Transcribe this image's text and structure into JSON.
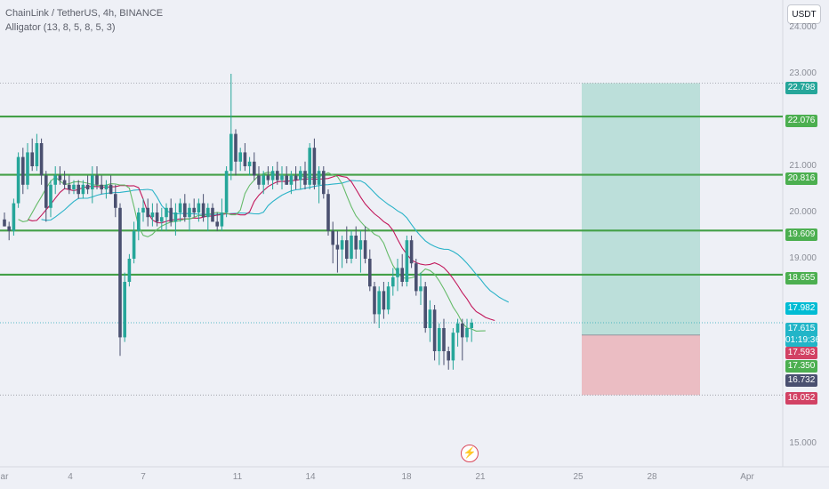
{
  "header": {
    "symbol_line": "ChainLink / TetherUS, 4h, BINANCE",
    "indicator_line": "Alligator (13, 8, 5, 8, 5, 3)"
  },
  "currency_button": "USDT",
  "alert_icon": "lightning-icon",
  "price_axis": {
    "ticks": [
      "24.000",
      "23.000",
      "21.000",
      "20.000",
      "19.000",
      "15.000"
    ]
  },
  "time_axis": {
    "labels": [
      "ar",
      "4",
      "7",
      "11",
      "14",
      "18",
      "21",
      "25",
      "28",
      "Apr"
    ]
  },
  "price_tags": [
    {
      "label": "22.798",
      "color": "#26a69a"
    },
    {
      "label": "22.076",
      "color": "#4caf50"
    },
    {
      "label": "20.816",
      "color": "#4caf50"
    },
    {
      "label": "19.609",
      "color": "#4caf50"
    },
    {
      "label": "18.655",
      "color": "#4caf50"
    },
    {
      "label": "17.982",
      "color": "#00bcd4"
    },
    {
      "label": "17.615",
      "sub": "01:19:36",
      "color": "#22b5c8"
    },
    {
      "label": "17.593",
      "color": "#d24264"
    },
    {
      "label": "17.350",
      "color": "#4caf50"
    },
    {
      "label": "16.732",
      "color": "#4a5070"
    },
    {
      "label": "16.052",
      "color": "#d24264"
    }
  ],
  "chart_data": {
    "type": "candlestick",
    "symbol": "ChainLink / TetherUS",
    "timeframe": "4h",
    "exchange": "BINANCE",
    "y_axis_range": [
      14.8,
      24.2
    ],
    "horizontal_levels": [
      22.076,
      20.816,
      19.609,
      18.655
    ],
    "dotted_levels": [
      22.798,
      17.615,
      16.052
    ],
    "position": {
      "entry": 17.35,
      "target": 22.798,
      "stop": 16.052
    },
    "indicators": {
      "alligator_params": "13, 8, 5, 8, 5, 3",
      "jaw_last": 17.982,
      "teeth_last": 17.593,
      "lips_last": 17.35
    },
    "last_price": 17.615,
    "countdown": "01:19:36",
    "candles": [
      [
        19.85,
        20.0,
        19.7,
        19.7
      ],
      [
        19.7,
        19.8,
        19.4,
        19.6
      ],
      [
        19.6,
        20.3,
        19.5,
        20.2
      ],
      [
        20.2,
        21.3,
        20.1,
        21.2
      ],
      [
        21.2,
        21.4,
        20.4,
        20.6
      ],
      [
        20.6,
        21.5,
        20.5,
        21.3
      ],
      [
        21.3,
        21.6,
        20.9,
        21.0
      ],
      [
        21.0,
        21.7,
        20.9,
        21.5
      ],
      [
        21.5,
        21.6,
        20.6,
        20.8
      ],
      [
        20.8,
        20.9,
        19.8,
        20.1
      ],
      [
        20.1,
        20.7,
        19.9,
        20.6
      ],
      [
        20.6,
        21.0,
        20.4,
        20.8
      ],
      [
        20.8,
        21.0,
        20.6,
        20.7
      ],
      [
        20.7,
        20.9,
        20.5,
        20.6
      ],
      [
        20.6,
        20.8,
        20.4,
        20.5
      ],
      [
        20.5,
        20.7,
        20.4,
        20.6
      ],
      [
        20.6,
        20.7,
        20.3,
        20.4
      ],
      [
        20.4,
        20.7,
        20.3,
        20.6
      ],
      [
        20.6,
        20.8,
        20.4,
        20.5
      ],
      [
        20.5,
        21.0,
        20.2,
        20.8
      ],
      [
        20.8,
        21.0,
        20.5,
        20.6
      ],
      [
        20.6,
        20.8,
        20.4,
        20.5
      ],
      [
        20.5,
        20.7,
        20.3,
        20.6
      ],
      [
        20.6,
        20.8,
        20.4,
        20.4
      ],
      [
        20.4,
        20.6,
        19.9,
        20.1
      ],
      [
        20.1,
        20.2,
        16.9,
        17.3
      ],
      [
        17.3,
        18.7,
        17.2,
        18.5
      ],
      [
        18.5,
        19.1,
        18.4,
        19.0
      ],
      [
        19.0,
        19.8,
        18.9,
        19.6
      ],
      [
        19.6,
        20.1,
        19.4,
        20.0
      ],
      [
        20.0,
        20.3,
        19.8,
        20.1
      ],
      [
        20.1,
        20.3,
        19.7,
        19.9
      ],
      [
        19.9,
        20.2,
        19.7,
        20.0
      ],
      [
        20.0,
        20.2,
        19.7,
        19.8
      ],
      [
        19.8,
        20.1,
        19.6,
        19.9
      ],
      [
        19.9,
        20.2,
        19.6,
        20.1
      ],
      [
        20.1,
        20.3,
        19.7,
        19.8
      ],
      [
        19.8,
        20.2,
        19.5,
        20.0
      ],
      [
        20.0,
        20.3,
        19.8,
        20.2
      ],
      [
        20.2,
        20.4,
        19.8,
        19.9
      ],
      [
        19.9,
        20.2,
        19.6,
        20.1
      ],
      [
        20.1,
        20.3,
        19.9,
        20.0
      ],
      [
        20.0,
        20.3,
        19.8,
        20.2
      ],
      [
        20.2,
        20.4,
        19.8,
        19.9
      ],
      [
        19.9,
        20.2,
        19.6,
        20.1
      ],
      [
        20.1,
        20.2,
        19.8,
        19.8
      ],
      [
        19.8,
        20.0,
        19.6,
        19.7
      ],
      [
        19.7,
        20.3,
        19.6,
        20.0
      ],
      [
        20.0,
        21.0,
        19.9,
        20.9
      ],
      [
        20.9,
        23.0,
        20.7,
        21.7
      ],
      [
        21.7,
        21.8,
        20.8,
        21.1
      ],
      [
        21.1,
        21.4,
        20.9,
        21.3
      ],
      [
        21.3,
        21.5,
        20.9,
        21.0
      ],
      [
        21.0,
        21.2,
        20.8,
        21.1
      ],
      [
        21.1,
        21.3,
        20.7,
        20.8
      ],
      [
        20.8,
        21.0,
        20.5,
        20.6
      ],
      [
        20.6,
        20.9,
        20.4,
        20.8
      ],
      [
        20.8,
        21.0,
        20.6,
        20.7
      ],
      [
        20.7,
        21.0,
        20.5,
        20.9
      ],
      [
        20.9,
        21.1,
        20.6,
        20.7
      ],
      [
        20.7,
        21.0,
        20.5,
        20.8
      ],
      [
        20.8,
        21.0,
        20.6,
        20.6
      ],
      [
        20.6,
        20.9,
        20.4,
        20.8
      ],
      [
        20.8,
        21.0,
        20.5,
        20.7
      ],
      [
        20.7,
        21.0,
        20.5,
        20.9
      ],
      [
        20.9,
        21.1,
        20.5,
        20.6
      ],
      [
        20.6,
        21.5,
        20.5,
        21.4
      ],
      [
        21.4,
        21.6,
        20.5,
        20.6
      ],
      [
        20.6,
        21.0,
        20.2,
        20.9
      ],
      [
        20.9,
        21.0,
        20.3,
        20.4
      ],
      [
        20.4,
        20.5,
        19.5,
        19.6
      ],
      [
        19.6,
        19.8,
        18.9,
        19.3
      ],
      [
        19.3,
        19.6,
        18.7,
        19.2
      ],
      [
        19.2,
        19.5,
        18.8,
        19.4
      ],
      [
        19.4,
        19.7,
        18.9,
        19.0
      ],
      [
        19.0,
        19.6,
        18.9,
        19.5
      ],
      [
        19.5,
        19.7,
        19.0,
        19.2
      ],
      [
        19.2,
        19.6,
        18.7,
        19.4
      ],
      [
        19.4,
        19.7,
        18.9,
        19.0
      ],
      [
        19.0,
        19.2,
        18.3,
        18.4
      ],
      [
        18.4,
        18.5,
        17.6,
        17.8
      ],
      [
        17.8,
        18.4,
        17.5,
        18.3
      ],
      [
        18.3,
        18.5,
        17.7,
        17.9
      ],
      [
        17.9,
        18.5,
        17.8,
        18.4
      ],
      [
        18.4,
        18.8,
        18.2,
        18.6
      ],
      [
        18.6,
        19.0,
        18.3,
        18.8
      ],
      [
        18.8,
        19.1,
        18.4,
        18.5
      ],
      [
        18.5,
        19.5,
        18.4,
        19.4
      ],
      [
        19.4,
        19.5,
        18.8,
        18.9
      ],
      [
        18.9,
        19.0,
        18.2,
        18.3
      ],
      [
        18.3,
        18.7,
        18.0,
        18.4
      ],
      [
        18.4,
        18.5,
        17.4,
        17.5
      ],
      [
        17.5,
        18.1,
        17.2,
        17.9
      ],
      [
        17.9,
        18.0,
        16.8,
        17.0
      ],
      [
        17.0,
        17.6,
        16.7,
        17.5
      ],
      [
        17.5,
        17.7,
        16.7,
        17.0
      ],
      [
        17.0,
        17.1,
        16.6,
        16.8
      ],
      [
        16.8,
        17.5,
        16.6,
        17.4
      ],
      [
        17.4,
        17.7,
        17.1,
        17.6
      ],
      [
        17.6,
        17.7,
        16.8,
        17.3
      ],
      [
        17.3,
        17.7,
        17.2,
        17.5
      ],
      [
        17.5,
        17.7,
        17.2,
        17.615
      ]
    ]
  }
}
